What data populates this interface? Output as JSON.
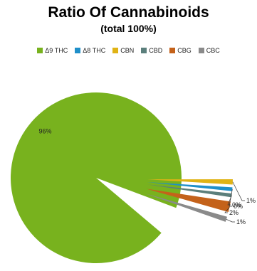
{
  "chart_data": {
    "type": "pie",
    "title": "Ratio Of Cannabinoids",
    "subtitle": "(total 100%)",
    "legend_position": "top",
    "exploded": true,
    "slices": [
      {
        "name": "Δ9 THC",
        "value": 96,
        "label": "96%",
        "color": "#78b21e"
      },
      {
        "name": "Δ8 THC",
        "value": 0,
        "label": "0%",
        "color": "#1f8fc9"
      },
      {
        "name": "CBN",
        "value": 1,
        "label": "1%",
        "color": "#e0b315"
      },
      {
        "name": "CBD",
        "value": 0,
        "label": "0%",
        "color": "#5b7f7c"
      },
      {
        "name": "CBG",
        "value": 2,
        "label": "2%",
        "color": "#c4621a"
      },
      {
        "name": "CBC",
        "value": 1,
        "label": "1%",
        "color": "#8a8a8a"
      }
    ]
  }
}
